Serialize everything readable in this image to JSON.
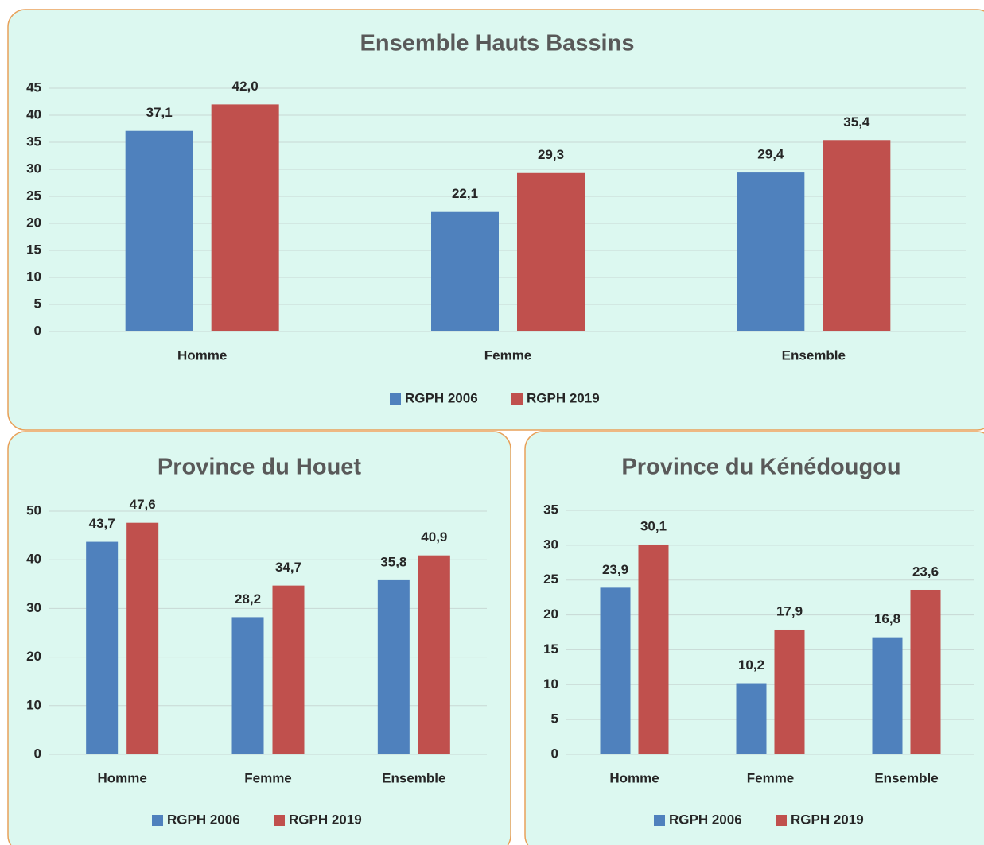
{
  "chart_data": [
    {
      "type": "bar",
      "title": "Ensemble Hauts Bassins",
      "categories": [
        "Homme",
        "Femme",
        "Ensemble"
      ],
      "series": [
        {
          "name": "RGPH 2006",
          "color": "#4f81bd",
          "values": [
            37.1,
            22.1,
            29.4
          ],
          "value_labels": [
            "37,1",
            "22,1",
            "29,4"
          ]
        },
        {
          "name": "RGPH 2019",
          "color": "#c0504d",
          "values": [
            42.0,
            29.3,
            35.4
          ],
          "value_labels": [
            "42,0",
            "29,3",
            "35,4"
          ]
        }
      ],
      "ylim": [
        0,
        45
      ],
      "yticks": [
        0,
        5,
        10,
        15,
        20,
        25,
        30,
        35,
        40,
        45
      ],
      "grid": true,
      "legend": "bottom"
    },
    {
      "type": "bar",
      "title": "Province du Houet",
      "categories": [
        "Homme",
        "Femme",
        "Ensemble"
      ],
      "series": [
        {
          "name": "RGPH 2006",
          "color": "#4f81bd",
          "values": [
            43.7,
            28.2,
            35.8
          ],
          "value_labels": [
            "43,7",
            "28,2",
            "35,8"
          ]
        },
        {
          "name": "RGPH 2019",
          "color": "#c0504d",
          "values": [
            47.6,
            34.7,
            40.9
          ],
          "value_labels": [
            "47,6",
            "34,7",
            "40,9"
          ]
        }
      ],
      "ylim": [
        0,
        50
      ],
      "yticks": [
        0,
        10,
        20,
        30,
        40,
        50
      ],
      "grid": true,
      "legend": "bottom"
    },
    {
      "type": "bar",
      "title": "Province du Kénédougou",
      "categories": [
        "Homme",
        "Femme",
        "Ensemble"
      ],
      "series": [
        {
          "name": "RGPH 2006",
          "color": "#4f81bd",
          "values": [
            23.9,
            10.2,
            16.8
          ],
          "value_labels": [
            "23,9",
            "10,2",
            "16,8"
          ]
        },
        {
          "name": "RGPH 2019",
          "color": "#c0504d",
          "values": [
            30.1,
            17.9,
            23.6
          ],
          "value_labels": [
            "30,1",
            "17,9",
            "23,6"
          ]
        }
      ],
      "ylim": [
        0,
        35
      ],
      "yticks": [
        0,
        5,
        10,
        15,
        20,
        25,
        30,
        35
      ],
      "grid": true,
      "legend": "bottom"
    }
  ]
}
